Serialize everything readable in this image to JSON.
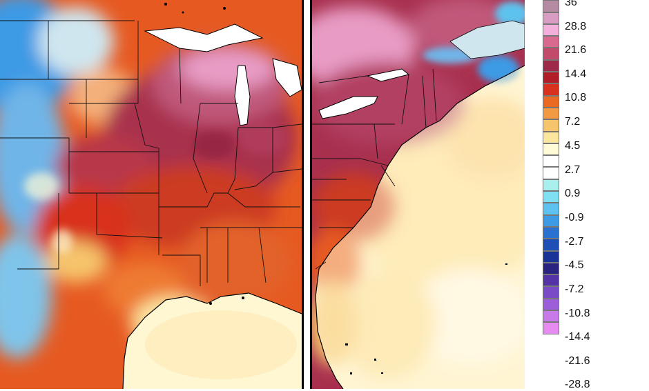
{
  "colorbar": {
    "labels": [
      "36",
      "28.8",
      "21.6",
      "14.4",
      "10.8",
      "7.2",
      "4.5",
      "2.7",
      "0.9",
      "-0.9",
      "-2.7",
      "-4.5",
      "-7.2",
      "-10.8",
      "-14.4",
      "-21.6",
      "-28.8"
    ],
    "colors": [
      "#9c6a80",
      "#b58aa3",
      "#d99dc3",
      "#f2b0da",
      "#d96a8f",
      "#c24a6a",
      "#9c2a48",
      "#b01d27",
      "#d8321e",
      "#ea6a24",
      "#f29a43",
      "#f6c46c",
      "#fbe6a0",
      "#fffbd6",
      "#ffffff",
      "#ffffff",
      "#a9efee",
      "#7fdff3",
      "#5dc2ee",
      "#3d9ae4",
      "#2a72cf",
      "#1d4fb5",
      "#193497",
      "#2a2480",
      "#5532a6",
      "#7a4bc7",
      "#9d5fd9",
      "#c77ae8",
      "#e68cf0"
    ]
  },
  "map_palette": {
    "ocean": "#fff9dc",
    "ocean_warm": "#fde8ad",
    "land_hot": "#d8321e",
    "land_very_hot": "#9c2a48",
    "land_extreme": "#d99dc3",
    "cold": "#3d9ae4",
    "border": "#000000"
  }
}
